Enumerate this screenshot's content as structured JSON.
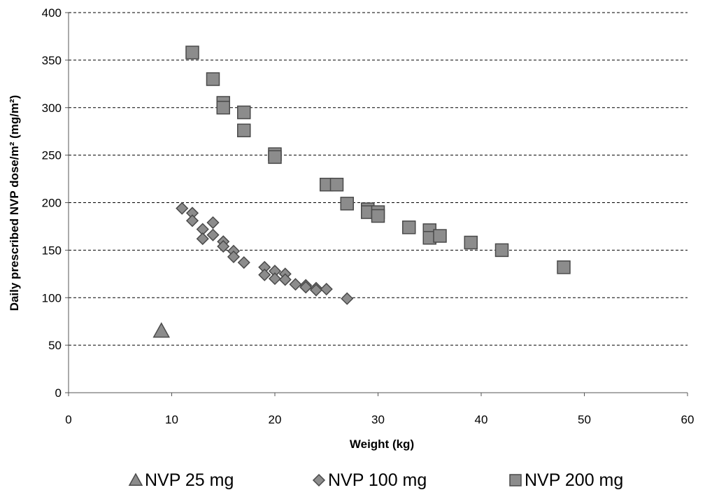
{
  "chart_data": {
    "type": "scatter",
    "title": "",
    "xlabel": "Weight (kg)",
    "ylabel": "Daily prescribed NVP dose/m² (mg/m²)",
    "xlim": [
      0,
      60
    ],
    "ylim": [
      0,
      400
    ],
    "x_ticks": [
      "0",
      "10",
      "20",
      "30",
      "40",
      "50",
      "60"
    ],
    "y_ticks": [
      "0",
      "50",
      "100",
      "150",
      "200",
      "250",
      "300",
      "350",
      "400"
    ],
    "grid": "horizontal dashed",
    "legend_position": "bottom",
    "series": [
      {
        "name": "NVP 25 mg",
        "marker": "triangle",
        "color": "#8c8c8c",
        "points": [
          [
            9,
            65
          ]
        ]
      },
      {
        "name": "NVP 100 mg",
        "marker": "diamond",
        "color": "#8c8c8c",
        "points": [
          [
            11,
            194
          ],
          [
            12,
            189
          ],
          [
            12,
            181
          ],
          [
            13,
            172
          ],
          [
            13,
            162
          ],
          [
            14,
            179
          ],
          [
            14,
            166
          ],
          [
            15,
            159
          ],
          [
            15,
            154
          ],
          [
            16,
            149
          ],
          [
            16,
            143
          ],
          [
            17,
            137
          ],
          [
            19,
            132
          ],
          [
            19,
            124
          ],
          [
            20,
            128
          ],
          [
            20,
            120
          ],
          [
            21,
            125
          ],
          [
            21,
            119
          ],
          [
            22,
            114
          ],
          [
            23,
            113
          ],
          [
            23,
            111
          ],
          [
            24,
            110
          ],
          [
            24,
            108
          ],
          [
            25,
            109
          ],
          [
            27,
            99
          ]
        ]
      },
      {
        "name": "NVP 200 mg",
        "marker": "square",
        "color": "#8c8c8c",
        "points": [
          [
            12,
            358
          ],
          [
            14,
            330
          ],
          [
            15,
            305
          ],
          [
            15,
            300
          ],
          [
            17,
            295
          ],
          [
            17,
            276
          ],
          [
            20,
            251
          ],
          [
            20,
            248
          ],
          [
            25,
            219
          ],
          [
            26,
            219
          ],
          [
            27,
            199
          ],
          [
            29,
            193
          ],
          [
            29,
            190
          ],
          [
            30,
            190
          ],
          [
            30,
            186
          ],
          [
            33,
            174
          ],
          [
            35,
            171
          ],
          [
            35,
            163
          ],
          [
            36,
            165
          ],
          [
            39,
            158
          ],
          [
            42,
            150
          ],
          [
            48,
            132
          ]
        ]
      }
    ]
  }
}
